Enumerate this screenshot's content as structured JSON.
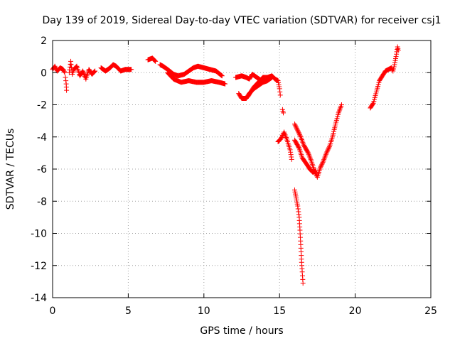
{
  "chart_data": {
    "type": "scatter",
    "title": "Day 139 of 2019, Sidereal Day-to-day VTEC variation (SDTVAR) for receiver csj1",
    "xlabel": "GPS time / hours",
    "ylabel": "SDTVAR / TECUs",
    "xlim": [
      0,
      25
    ],
    "ylim": [
      -14,
      2
    ],
    "xticks": [
      0,
      5,
      10,
      15,
      20,
      25
    ],
    "yticks": [
      2,
      0,
      -2,
      -4,
      -6,
      -8,
      -10,
      -12,
      -14
    ],
    "grid": true,
    "marker": "plus",
    "color": "#ff0000",
    "segments": [
      [
        [
          0.0,
          0.2
        ],
        [
          0.15,
          0.4
        ],
        [
          0.3,
          0.1
        ],
        [
          0.5,
          0.3
        ],
        [
          0.7,
          0.2
        ],
        [
          0.8,
          0.0
        ]
      ],
      [
        [
          0.85,
          -0.3
        ],
        [
          0.9,
          -0.7
        ],
        [
          0.92,
          -1.1
        ]
      ],
      [
        [
          1.1,
          0.0
        ],
        [
          1.2,
          0.7
        ],
        [
          1.3,
          -0.1
        ],
        [
          1.4,
          0.2
        ],
        [
          1.6,
          0.4
        ],
        [
          1.8,
          -0.2
        ],
        [
          2.0,
          0.1
        ],
        [
          2.2,
          -0.4
        ],
        [
          2.4,
          0.2
        ],
        [
          2.6,
          -0.1
        ],
        [
          2.8,
          0.1
        ]
      ],
      [
        [
          3.2,
          0.3
        ],
        [
          3.5,
          0.1
        ],
        [
          3.8,
          0.3
        ],
        [
          4.0,
          0.5
        ],
        [
          4.2,
          0.4
        ],
        [
          4.5,
          0.1
        ],
        [
          4.8,
          0.2
        ],
        [
          5.2,
          0.2
        ]
      ],
      [
        [
          6.3,
          0.8
        ],
        [
          6.6,
          0.9
        ],
        [
          6.8,
          0.7
        ]
      ],
      [
        [
          7.1,
          0.5
        ],
        [
          7.3,
          0.4
        ],
        [
          7.6,
          0.2
        ],
        [
          8.0,
          -0.1
        ],
        [
          8.3,
          -0.2
        ],
        [
          8.7,
          -0.1
        ],
        [
          9.0,
          0.1
        ],
        [
          9.3,
          0.3
        ],
        [
          9.6,
          0.4
        ],
        [
          10.0,
          0.3
        ],
        [
          10.4,
          0.2
        ],
        [
          10.8,
          0.1
        ],
        [
          11.2,
          -0.2
        ]
      ],
      [
        [
          7.6,
          0.0
        ],
        [
          8.0,
          -0.4
        ],
        [
          8.5,
          -0.6
        ],
        [
          9.0,
          -0.5
        ],
        [
          9.5,
          -0.6
        ],
        [
          10.0,
          -0.6
        ],
        [
          10.5,
          -0.5
        ],
        [
          11.0,
          -0.6
        ],
        [
          11.4,
          -0.7
        ]
      ],
      [
        [
          12.1,
          -0.3
        ],
        [
          12.5,
          -0.2
        ],
        [
          12.8,
          -0.3
        ],
        [
          13.0,
          -0.4
        ],
        [
          13.2,
          -0.1
        ],
        [
          13.5,
          -0.3
        ],
        [
          13.8,
          -0.5
        ],
        [
          14.0,
          -0.4
        ]
      ],
      [
        [
          12.3,
          -1.3
        ],
        [
          12.5,
          -1.6
        ],
        [
          12.8,
          -1.6
        ],
        [
          13.0,
          -1.3
        ],
        [
          13.3,
          -1.0
        ],
        [
          13.6,
          -0.8
        ],
        [
          13.9,
          -0.6
        ],
        [
          14.2,
          -0.5
        ],
        [
          14.5,
          -0.3
        ]
      ],
      [
        [
          12.9,
          -1.5
        ],
        [
          13.1,
          -1.2
        ],
        [
          13.3,
          -0.9
        ],
        [
          13.6,
          -0.6
        ],
        [
          13.9,
          -0.3
        ],
        [
          14.2,
          -0.3
        ],
        [
          14.5,
          -0.2
        ],
        [
          14.7,
          -0.4
        ],
        [
          14.9,
          -0.5
        ],
        [
          15.0,
          -1.0
        ],
        [
          15.05,
          -1.4
        ]
      ],
      [
        [
          15.2,
          -2.3
        ],
        [
          15.25,
          -2.5
        ]
      ],
      [
        [
          14.9,
          -4.3
        ],
        [
          15.1,
          -4.1
        ],
        [
          15.3,
          -3.7
        ],
        [
          15.5,
          -4.2
        ],
        [
          15.7,
          -4.8
        ],
        [
          15.8,
          -5.4
        ]
      ],
      [
        [
          16.0,
          -3.2
        ],
        [
          16.2,
          -3.6
        ],
        [
          16.4,
          -4.0
        ],
        [
          16.6,
          -4.5
        ],
        [
          16.9,
          -5.0
        ],
        [
          17.1,
          -5.5
        ],
        [
          17.3,
          -6.1
        ],
        [
          17.5,
          -6.5
        ],
        [
          17.7,
          -5.9
        ],
        [
          17.9,
          -5.5
        ],
        [
          18.1,
          -5.0
        ],
        [
          18.3,
          -4.6
        ],
        [
          18.5,
          -4.0
        ],
        [
          18.7,
          -3.2
        ],
        [
          18.9,
          -2.5
        ],
        [
          19.1,
          -2.0
        ]
      ],
      [
        [
          16.0,
          -4.2
        ],
        [
          16.3,
          -4.7
        ],
        [
          16.5,
          -5.3
        ],
        [
          16.8,
          -5.7
        ],
        [
          17.0,
          -6.0
        ],
        [
          17.2,
          -6.2
        ],
        [
          17.4,
          -6.1
        ]
      ],
      [
        [
          16.0,
          -7.3
        ],
        [
          16.1,
          -7.8
        ],
        [
          16.2,
          -8.3
        ],
        [
          16.3,
          -9.0
        ],
        [
          16.35,
          -9.8
        ],
        [
          16.4,
          -10.7
        ],
        [
          16.45,
          -11.6
        ],
        [
          16.5,
          -12.4
        ],
        [
          16.55,
          -13.1
        ]
      ],
      [
        [
          21.0,
          -2.2
        ],
        [
          21.2,
          -1.9
        ],
        [
          21.4,
          -1.2
        ],
        [
          21.6,
          -0.5
        ],
        [
          21.8,
          -0.2
        ],
        [
          22.0,
          0.1
        ],
        [
          22.2,
          0.2
        ],
        [
          22.4,
          0.3
        ],
        [
          22.5,
          0.1
        ],
        [
          22.6,
          0.5
        ],
        [
          22.7,
          1.0
        ],
        [
          22.8,
          1.6
        ],
        [
          22.85,
          1.4
        ]
      ]
    ]
  }
}
